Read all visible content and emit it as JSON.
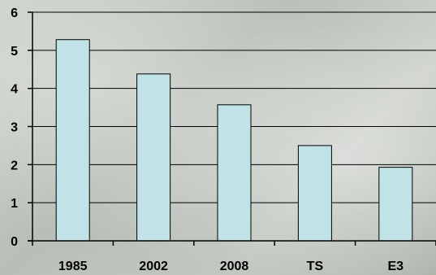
{
  "chart_data": {
    "type": "bar",
    "categories": [
      "1985",
      "2002",
      "2008",
      "TS",
      "E3"
    ],
    "values": [
      5.28,
      4.38,
      3.57,
      2.5,
      1.93
    ],
    "title": "",
    "xlabel": "",
    "ylabel": "",
    "ylim": [
      0,
      6
    ],
    "yticks": [
      "0",
      "1",
      "2",
      "3",
      "4",
      "5",
      "6"
    ],
    "grid": true,
    "colors": {
      "bar_fill": "#bfe3e6",
      "bar_stroke": "#000000",
      "grid": "#000000",
      "axis": "#000000"
    }
  }
}
